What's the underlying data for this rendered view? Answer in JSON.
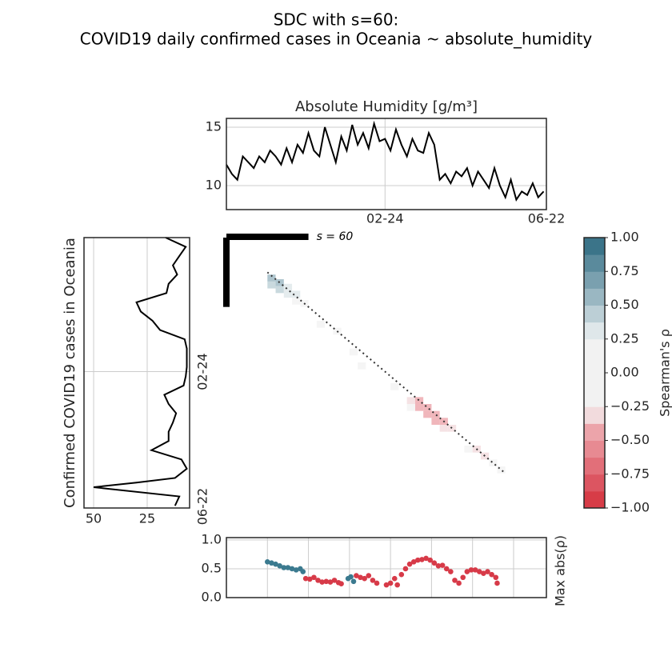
{
  "title": [
    "SDC with s=60:",
    "COVID19 daily confirmed cases in Oceania ~ absolute_humidity"
  ],
  "chart_data": [
    {
      "type": "line",
      "title": "Absolute Humidity [g/m³]",
      "color": "#000000",
      "x": [
        0,
        4,
        8,
        12,
        16,
        20,
        24,
        28,
        32,
        36,
        40,
        44,
        48,
        52,
        56,
        60,
        64,
        68,
        72,
        76,
        80,
        84,
        88,
        92,
        96,
        100,
        104,
        108,
        112,
        116,
        120,
        124,
        128,
        132,
        136,
        140,
        144,
        148,
        152,
        156,
        160,
        164,
        168,
        172,
        176,
        180,
        184,
        188,
        192,
        196,
        200,
        204,
        208,
        212,
        216,
        220,
        224,
        228,
        232
      ],
      "values": [
        11.8,
        11.0,
        10.5,
        12.5,
        12.0,
        11.5,
        12.5,
        12.0,
        13.0,
        12.5,
        11.8,
        13.2,
        12.0,
        13.5,
        12.8,
        14.5,
        13.0,
        12.5,
        15.0,
        13.5,
        12.0,
        14.2,
        13.0,
        15.2,
        13.5,
        14.5,
        13.2,
        15.3,
        13.8,
        14.0,
        13.0,
        14.8,
        13.5,
        12.5,
        14.0,
        13.0,
        12.8,
        14.5,
        13.5,
        10.5,
        11.0,
        10.2,
        11.2,
        10.8,
        11.5,
        10.0,
        11.2,
        10.5,
        9.8,
        11.5,
        10.0,
        9.0,
        10.5,
        8.8,
        9.5,
        9.2,
        10.2,
        9.0,
        9.5
      ],
      "xlim": [
        0,
        234
      ],
      "xticks": [
        {
          "value": 116,
          "label": "02-24"
        },
        {
          "value": 234,
          "label": "06-22"
        }
      ],
      "ylim": [
        7.95,
        15.75
      ],
      "yticks": [
        10,
        15
      ],
      "grid": true
    },
    {
      "type": "line-vertical",
      "ylabel": "Confirmed COVID19 cases in Oceania",
      "color": "#000000",
      "y": [
        0,
        8,
        16,
        24,
        32,
        40,
        48,
        56,
        64,
        72,
        80,
        88,
        96,
        104,
        112,
        120,
        128,
        136,
        144,
        152,
        160,
        168,
        176,
        184,
        192,
        200,
        208,
        212,
        216,
        224,
        232
      ],
      "values": [
        16.4,
        7.0,
        10.0,
        13.0,
        11.0,
        15.0,
        16.0,
        30.0,
        28.0,
        22.5,
        19.0,
        7.5,
        6.5,
        6.5,
        6.5,
        7.0,
        8.0,
        17.0,
        15.0,
        11.5,
        13.0,
        15.0,
        15.0,
        23.0,
        9.0,
        6.5,
        12.0,
        30.0,
        50.0,
        10.0,
        12.0
      ],
      "xlim": [
        54.5,
        5.2
      ],
      "xticks": [
        50,
        25
      ],
      "ylim": [
        0,
        234
      ],
      "yticks": [
        {
          "value": 116,
          "label": "02-24"
        },
        {
          "value": 234,
          "label": "06-22"
        }
      ],
      "grid": true
    },
    {
      "type": "heatmap",
      "window_label": "s = 60",
      "s": 60,
      "cell": 6,
      "diagonal": [
        30,
        204
      ],
      "xlim": [
        0,
        234
      ],
      "ylim": [
        0,
        234
      ],
      "x": [
        30,
        36,
        36,
        42,
        42,
        48,
        48,
        30,
        54,
        66,
        78,
        90,
        96,
        120,
        132,
        138,
        138,
        144,
        144,
        150,
        150,
        156,
        162,
        132,
        156,
        174,
        180,
        186,
        192,
        198
      ],
      "y": [
        32,
        36,
        42,
        40,
        46,
        46,
        52,
        38,
        54,
        72,
        78,
        96,
        108,
        126,
        138,
        138,
        144,
        144,
        150,
        150,
        156,
        156,
        162,
        144,
        162,
        180,
        180,
        186,
        192,
        198
      ],
      "values": [
        0.6,
        0.5,
        0.4,
        0.35,
        0.3,
        0.3,
        0.2,
        0.4,
        0.15,
        0.1,
        0.1,
        0.1,
        -0.1,
        -0.1,
        -0.3,
        -0.4,
        -0.5,
        -0.5,
        -0.45,
        -0.5,
        -0.45,
        -0.4,
        -0.35,
        -0.2,
        -0.3,
        -0.25,
        -0.3,
        -0.3,
        -0.25,
        -0.2
      ],
      "colorbar": {
        "label": "Spearman's ρ",
        "lim": [
          -1,
          1
        ],
        "colors": [
          "#d73c47",
          "#dc5561",
          "#e26f79",
          "#e78a92",
          "#eca4aa",
          "#f2dbdd",
          "#f2f2f2",
          "#f2f2f2",
          "#f2f2f2",
          "#f2f2f2",
          "#dfe7ea",
          "#bccfd6",
          "#9ab7c2",
          "#7aa0af",
          "#5a8a9c",
          "#3b7489"
        ],
        "ticks": [
          {
            "value": 1,
            "label": "1.00"
          },
          {
            "value": 0.75,
            "label": "0.75"
          },
          {
            "value": 0.5,
            "label": "0.50"
          },
          {
            "value": 0.25,
            "label": "0.25"
          },
          {
            "value": 0,
            "label": "0.00"
          },
          {
            "value": -0.25,
            "label": "−0.25"
          },
          {
            "value": -0.5,
            "label": "−0.50"
          },
          {
            "value": -0.75,
            "label": "−0.75"
          },
          {
            "value": -1,
            "label": "−1.00"
          }
        ]
      }
    },
    {
      "type": "scatter",
      "ylabel": "Max abs(ρ)",
      "x": [
        30,
        33,
        36,
        39,
        42,
        45,
        48,
        51,
        54,
        56,
        58,
        61,
        64,
        67,
        70,
        73,
        76,
        79,
        82,
        84,
        89,
        91,
        93,
        95,
        98,
        101,
        104,
        107,
        110,
        117,
        120,
        123,
        125,
        128,
        131,
        134,
        137,
        140,
        143,
        146,
        149,
        152,
        155,
        158,
        161,
        164,
        167,
        170,
        173,
        176,
        179,
        182,
        185,
        188,
        191,
        194,
        197,
        198
      ],
      "values": [
        0.62,
        0.6,
        0.58,
        0.55,
        0.52,
        0.52,
        0.5,
        0.48,
        0.5,
        0.45,
        0.33,
        0.32,
        0.35,
        0.3,
        0.27,
        0.28,
        0.27,
        0.3,
        0.26,
        0.24,
        0.33,
        0.36,
        0.28,
        0.38,
        0.35,
        0.33,
        0.38,
        0.3,
        0.25,
        0.22,
        0.25,
        0.33,
        0.22,
        0.4,
        0.5,
        0.58,
        0.62,
        0.65,
        0.66,
        0.68,
        0.65,
        0.6,
        0.55,
        0.56,
        0.5,
        0.45,
        0.3,
        0.25,
        0.35,
        0.45,
        0.48,
        0.48,
        0.45,
        0.42,
        0.45,
        0.4,
        0.35,
        0.25
      ],
      "point_colors": [
        "#3b7a8f",
        "#3b7a8f",
        "#3b7a8f",
        "#3b7a8f",
        "#3b7a8f",
        "#3b7a8f",
        "#3b7a8f",
        "#3b7a8f",
        "#3b7a8f",
        "#3b7a8f",
        "#d73a48",
        "#d73a48",
        "#d73a48",
        "#d73a48",
        "#d73a48",
        "#d73a48",
        "#d73a48",
        "#d73a48",
        "#d73a48",
        "#d73a48",
        "#3b7a8f",
        "#3b7a8f",
        "#3b7a8f",
        "#d73a48",
        "#d73a48",
        "#d73a48",
        "#d73a48",
        "#d73a48",
        "#d73a48",
        "#d73a48",
        "#d73a48",
        "#d73a48",
        "#d73a48",
        "#d73a48",
        "#d73a48",
        "#d73a48",
        "#d73a48",
        "#d73a48",
        "#d73a48",
        "#d73a48",
        "#d73a48",
        "#d73a48",
        "#d73a48",
        "#d73a48",
        "#d73a48",
        "#d73a48",
        "#d73a48",
        "#d73a48",
        "#d73a48",
        "#d73a48",
        "#d73a48",
        "#d73a48",
        "#d73a48",
        "#d73a48",
        "#d73a48",
        "#d73a48",
        "#d73a48",
        "#d73a48"
      ],
      "xlim": [
        0,
        234
      ],
      "xgrid": [
        30,
        60,
        90,
        120,
        150,
        180,
        210
      ],
      "ylim": [
        0,
        1.04
      ],
      "yticks": [
        {
          "value": 0,
          "label": "0.0"
        },
        {
          "value": 0.5,
          "label": "0.5"
        },
        {
          "value": 1,
          "label": "1.0"
        }
      ],
      "grid": true
    }
  ]
}
